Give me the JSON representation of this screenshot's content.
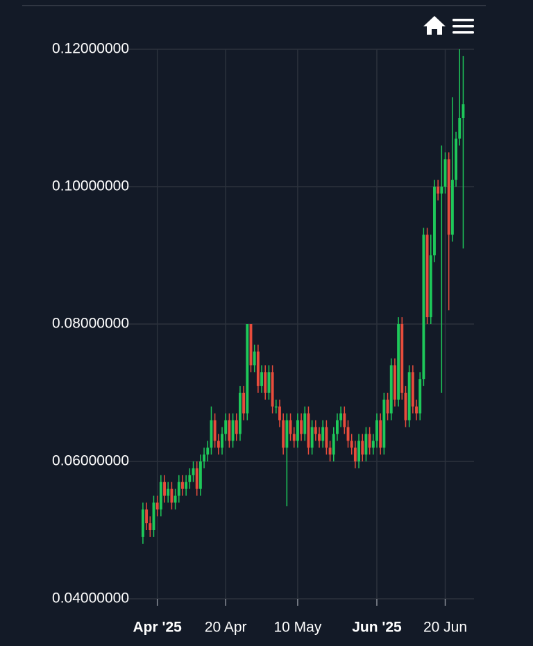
{
  "chart_data": {
    "type": "candlestick",
    "x": [
      "2025-03-28",
      "2025-03-29",
      "2025-03-30",
      "2025-03-31",
      "2025-04-01",
      "2025-04-02",
      "2025-04-03",
      "2025-04-04",
      "2025-04-05",
      "2025-04-06",
      "2025-04-07",
      "2025-04-08",
      "2025-04-09",
      "2025-04-10",
      "2025-04-11",
      "2025-04-12",
      "2025-04-13",
      "2025-04-14",
      "2025-04-15",
      "2025-04-16",
      "2025-04-17",
      "2025-04-18",
      "2025-04-19",
      "2025-04-20",
      "2025-04-21",
      "2025-04-22",
      "2025-04-23",
      "2025-04-24",
      "2025-04-25",
      "2025-04-26",
      "2025-04-27",
      "2025-04-28",
      "2025-04-29",
      "2025-04-30",
      "2025-05-01",
      "2025-05-02",
      "2025-05-03",
      "2025-05-04",
      "2025-05-05",
      "2025-05-06",
      "2025-05-07",
      "2025-05-08",
      "2025-05-09",
      "2025-05-10",
      "2025-05-11",
      "2025-05-12",
      "2025-05-13",
      "2025-05-14",
      "2025-05-15",
      "2025-05-16",
      "2025-05-17",
      "2025-05-18",
      "2025-05-19",
      "2025-05-20",
      "2025-05-21",
      "2025-05-22",
      "2025-05-23",
      "2025-05-24",
      "2025-05-25",
      "2025-05-26",
      "2025-05-27",
      "2025-05-28",
      "2025-05-29",
      "2025-05-30",
      "2025-05-31",
      "2025-06-01",
      "2025-06-02",
      "2025-06-03",
      "2025-06-04",
      "2025-06-05",
      "2025-06-06",
      "2025-06-07",
      "2025-06-08",
      "2025-06-09",
      "2025-06-10",
      "2025-06-11",
      "2025-06-12",
      "2025-06-13",
      "2025-06-14",
      "2025-06-15",
      "2025-06-16",
      "2025-06-17",
      "2025-06-18",
      "2025-06-19",
      "2025-06-20",
      "2025-06-21",
      "2025-06-22",
      "2025-06-23",
      "2025-06-24",
      "2025-06-25"
    ],
    "open": [
      0.049,
      0.053,
      0.051,
      0.05,
      0.054,
      0.053,
      0.057,
      0.055,
      0.056,
      0.054,
      0.055,
      0.057,
      0.056,
      0.057,
      0.058,
      0.059,
      0.056,
      0.06,
      0.061,
      0.062,
      0.066,
      0.063,
      0.062,
      0.064,
      0.066,
      0.063,
      0.066,
      0.064,
      0.07,
      0.067,
      0.08,
      0.074,
      0.076,
      0.071,
      0.073,
      0.07,
      0.073,
      0.068,
      0.068,
      0.066,
      0.062,
      0.066,
      0.064,
      0.063,
      0.066,
      0.064,
      0.067,
      0.062,
      0.065,
      0.064,
      0.063,
      0.065,
      0.062,
      0.061,
      0.064,
      0.066,
      0.067,
      0.065,
      0.063,
      0.062,
      0.06,
      0.063,
      0.061,
      0.064,
      0.062,
      0.063,
      0.066,
      0.062,
      0.069,
      0.067,
      0.074,
      0.069,
      0.08,
      0.07,
      0.066,
      0.073,
      0.068,
      0.067,
      0.072,
      0.093,
      0.081,
      0.09,
      0.1,
      0.099,
      0.1,
      0.104,
      0.093,
      0.101,
      0.107,
      0.11
    ],
    "high": [
      0.054,
      0.054,
      0.052,
      0.055,
      0.055,
      0.058,
      0.058,
      0.057,
      0.057,
      0.056,
      0.058,
      0.058,
      0.058,
      0.059,
      0.06,
      0.06,
      0.061,
      0.062,
      0.063,
      0.068,
      0.067,
      0.064,
      0.065,
      0.067,
      0.067,
      0.067,
      0.067,
      0.071,
      0.071,
      0.08,
      0.08,
      0.077,
      0.077,
      0.074,
      0.074,
      0.074,
      0.074,
      0.069,
      0.069,
      0.067,
      0.067,
      0.067,
      0.065,
      0.067,
      0.067,
      0.068,
      0.068,
      0.066,
      0.066,
      0.065,
      0.066,
      0.066,
      0.063,
      0.065,
      0.067,
      0.068,
      0.068,
      0.066,
      0.064,
      0.063,
      0.064,
      0.064,
      0.065,
      0.065,
      0.064,
      0.067,
      0.067,
      0.07,
      0.07,
      0.075,
      0.075,
      0.081,
      0.081,
      0.071,
      0.074,
      0.074,
      0.069,
      0.073,
      0.094,
      0.094,
      0.093,
      0.101,
      0.101,
      0.106,
      0.105,
      0.105,
      0.113,
      0.108,
      0.12,
      0.119
    ],
    "low": [
      0.048,
      0.05,
      0.049,
      0.049,
      0.052,
      0.052,
      0.054,
      0.054,
      0.053,
      0.053,
      0.054,
      0.055,
      0.055,
      0.056,
      0.057,
      0.055,
      0.055,
      0.059,
      0.06,
      0.061,
      0.062,
      0.061,
      0.061,
      0.063,
      0.062,
      0.062,
      0.063,
      0.063,
      0.066,
      0.066,
      0.073,
      0.073,
      0.07,
      0.07,
      0.069,
      0.069,
      0.067,
      0.067,
      0.065,
      0.061,
      0.0535,
      0.063,
      0.062,
      0.062,
      0.063,
      0.063,
      0.061,
      0.061,
      0.063,
      0.062,
      0.062,
      0.061,
      0.06,
      0.06,
      0.063,
      0.065,
      0.064,
      0.062,
      0.061,
      0.059,
      0.059,
      0.06,
      0.06,
      0.061,
      0.061,
      0.062,
      0.061,
      0.061,
      0.066,
      0.066,
      0.068,
      0.068,
      0.069,
      0.065,
      0.065,
      0.067,
      0.066,
      0.066,
      0.071,
      0.08,
      0.08,
      0.089,
      0.098,
      0.07,
      0.099,
      0.082,
      0.092,
      0.1,
      0.106,
      0.091
    ],
    "close": [
      0.053,
      0.051,
      0.05,
      0.054,
      0.053,
      0.057,
      0.055,
      0.056,
      0.054,
      0.055,
      0.057,
      0.056,
      0.057,
      0.058,
      0.059,
      0.056,
      0.06,
      0.061,
      0.062,
      0.066,
      0.063,
      0.062,
      0.064,
      0.066,
      0.063,
      0.066,
      0.064,
      0.07,
      0.067,
      0.08,
      0.074,
      0.076,
      0.071,
      0.073,
      0.07,
      0.073,
      0.068,
      0.068,
      0.066,
      0.062,
      0.066,
      0.064,
      0.063,
      0.066,
      0.064,
      0.067,
      0.062,
      0.065,
      0.064,
      0.063,
      0.065,
      0.062,
      0.061,
      0.064,
      0.066,
      0.067,
      0.065,
      0.063,
      0.062,
      0.06,
      0.063,
      0.061,
      0.064,
      0.062,
      0.063,
      0.066,
      0.062,
      0.069,
      0.067,
      0.074,
      0.069,
      0.08,
      0.07,
      0.066,
      0.073,
      0.068,
      0.067,
      0.072,
      0.093,
      0.081,
      0.09,
      0.1,
      0.099,
      0.1,
      0.104,
      0.093,
      0.101,
      0.107,
      0.11,
      0.112
    ],
    "up_color": "#1ec85a",
    "down_color": "#e74c3c",
    "xlim": [
      "2025-03-23",
      "2025-06-28"
    ],
    "xticks": [
      {
        "value": "2025-04-01",
        "label": "Apr '25"
      },
      {
        "value": "2025-04-20",
        "label": "20 Apr"
      },
      {
        "value": "2025-05-10",
        "label": "10 May"
      },
      {
        "value": "2025-06-01",
        "label": "Jun '25"
      },
      {
        "value": "2025-06-20",
        "label": "20 Jun"
      }
    ],
    "ylim": [
      0.04,
      0.12
    ],
    "yticks": [
      {
        "value": 0.04,
        "label": "0.04000000"
      },
      {
        "value": 0.06,
        "label": "0.06000000"
      },
      {
        "value": 0.08,
        "label": "0.08000000"
      },
      {
        "value": 0.1,
        "label": "0.10000000"
      },
      {
        "value": 0.12,
        "label": "0.12000000"
      }
    ],
    "grid": true
  }
}
